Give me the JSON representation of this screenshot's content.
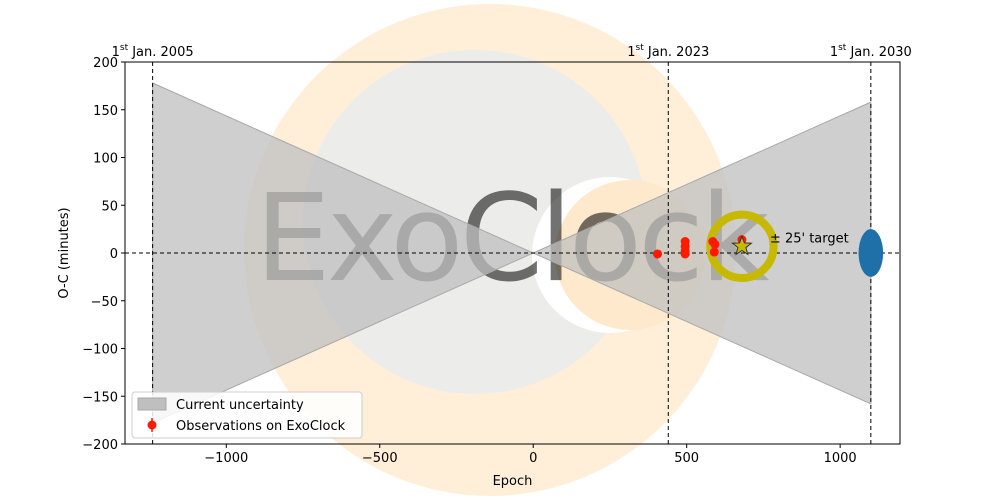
{
  "chart_data": {
    "type": "scatter",
    "xlabel": "Epoch",
    "ylabel": "O-C (minutes)",
    "xlim": [
      -1330,
      1195
    ],
    "ylim": [
      -200,
      200
    ],
    "xticks": [
      -1000,
      -500,
      0,
      500,
      1000
    ],
    "xtick_labels": [
      "−1000",
      "−500",
      "0",
      "500",
      "1000"
    ],
    "yticks": [
      200,
      150,
      100,
      50,
      0,
      -50,
      -100,
      -150,
      -200
    ],
    "ytick_labels": [
      "200",
      "150",
      "100",
      "50",
      "0",
      "−50",
      "−100",
      "−150",
      "−200"
    ],
    "grid": false,
    "epoch_markers": [
      {
        "x": -1240,
        "sup": "st",
        "label_pre": "1",
        "label_post": " Jan. 2005"
      },
      {
        "x": 440,
        "sup": "st",
        "label_pre": "1",
        "label_post": " Jan. 2023"
      },
      {
        "x": 1100,
        "sup": "st",
        "label_pre": "1",
        "label_post": " Jan. 2030"
      }
    ],
    "uncertainty": {
      "name": "Current uncertainty",
      "left": {
        "x": -1240,
        "y_upper": 178,
        "y_lower": -178
      },
      "right": {
        "x": 1100,
        "y_upper": 158,
        "y_lower": -158
      },
      "center": {
        "x": 0,
        "y": 0
      },
      "color": "#bfbfbf"
    },
    "observations": {
      "name": "Observations on ExoClock",
      "color": "#ff1a00",
      "points": [
        {
          "x": 405,
          "y": -1
        },
        {
          "x": 495,
          "y": 12
        },
        {
          "x": 495,
          "y": 7
        },
        {
          "x": 495,
          "y": 2
        },
        {
          "x": 495,
          "y": -1
        },
        {
          "x": 585,
          "y": 12
        },
        {
          "x": 592,
          "y": 9
        },
        {
          "x": 590,
          "y": 1
        },
        {
          "x": 680,
          "y": 14
        }
      ]
    },
    "target": {
      "x": 680,
      "y": 7,
      "label": "± 25' target",
      "ring_radius_epoch": 120,
      "ring_color": "#c7b800",
      "star_color": "#c7b800"
    },
    "future_ellipse": {
      "x": 1100,
      "y": 0,
      "rx_epoch": 40,
      "ry_minutes": 25,
      "color": "#1f6fa8"
    },
    "legend_position": "lower-left",
    "watermark": {
      "text": "ExoClock"
    }
  }
}
